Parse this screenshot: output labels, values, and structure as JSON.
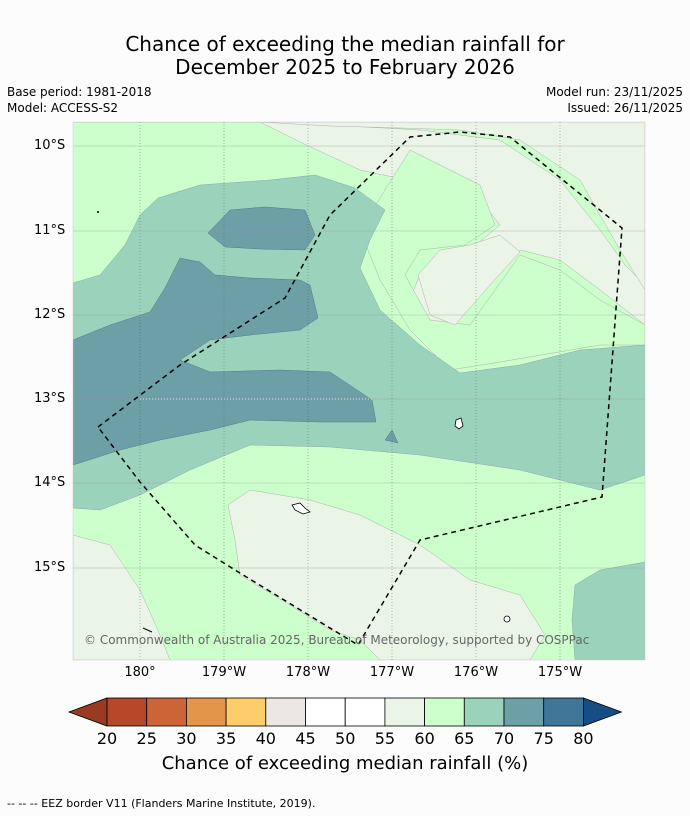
{
  "title": {
    "line1": "Chance of exceeding the median rainfall for",
    "line2": "December 2025 to February 2026"
  },
  "meta": {
    "base_period": "Base period: 1981-2018",
    "model": "Model: ACCESS-S2",
    "model_run": "Model run: 23/11/2025",
    "issued": "Issued: 26/11/2025"
  },
  "map": {
    "lat_labels": [
      "10°S",
      "11°S",
      "12°S",
      "13°S",
      "14°S",
      "15°S"
    ],
    "lon_labels": [
      "180°",
      "179°W",
      "178°W",
      "177°W",
      "176°W",
      "175°W"
    ],
    "copyright": "© Commonwealth of Australia 2025, Bureau of Meteorology, supported by COSPPac"
  },
  "colorbar": {
    "labels": [
      "20",
      "25",
      "30",
      "35",
      "40",
      "45",
      "50",
      "55",
      "60",
      "65",
      "70",
      "75",
      "80"
    ],
    "colors": {
      "under": "#9b3a22",
      "c20_25": "#b5472a",
      "c25_30": "#cc6437",
      "c30_35": "#e39649",
      "c35_40": "#fdcc6b",
      "c40_45": "#ebe8e3",
      "c45_50": "#ffffff",
      "c50_55": "#ffffff",
      "c55_60": "#eaf5e8",
      "c60_65": "#ccffcc",
      "c65_70": "#9bd2bc",
      "c70_75": "#6da0a6",
      "c75_80": "#3f7597",
      "over": "#164d84"
    },
    "title": "Chance of exceeding median rainfall (%)"
  },
  "legend_note": "--  --  -- EEZ border V11 (Flanders Marine Institute, 2019)."
}
